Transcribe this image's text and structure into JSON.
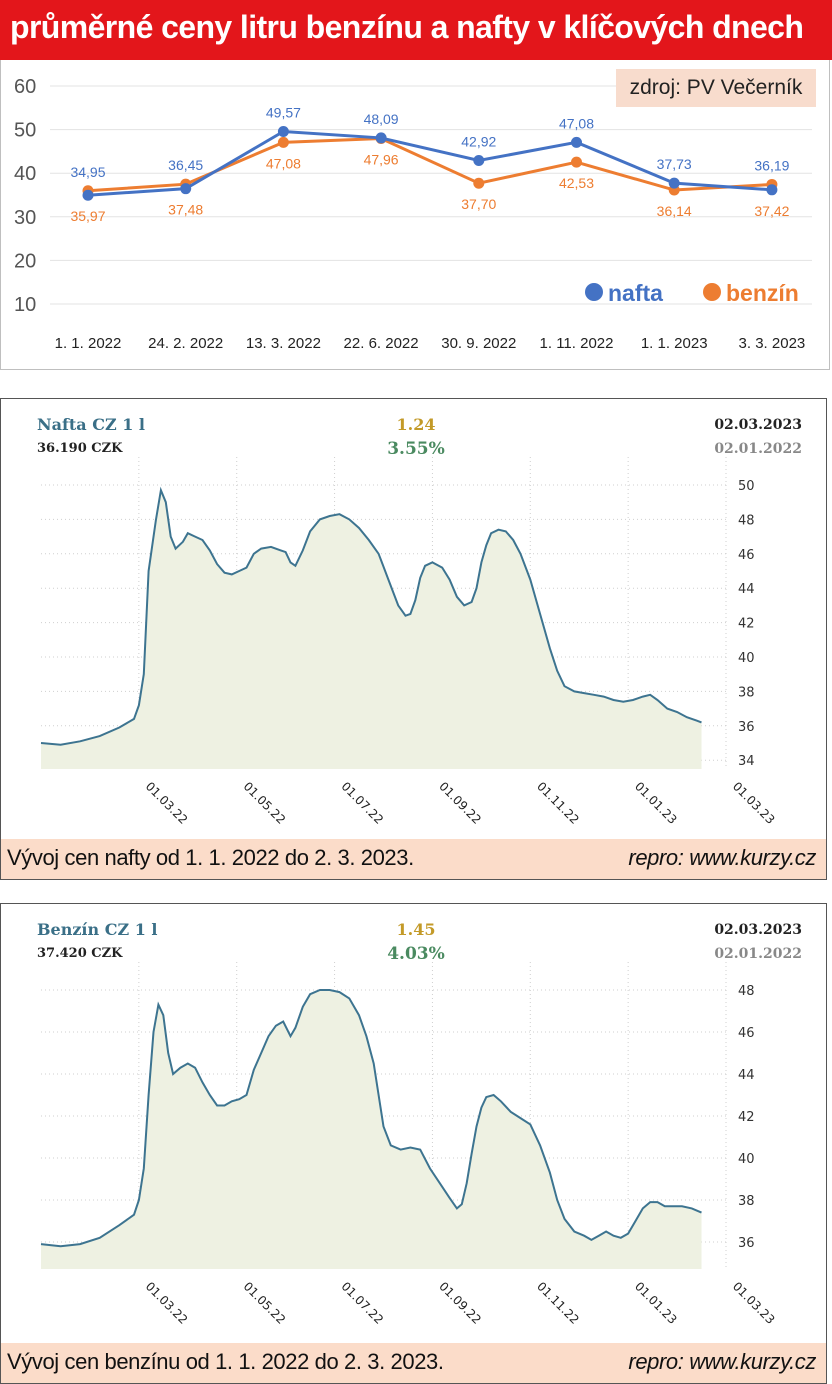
{
  "panel1": {
    "title": "průměrné ceny litru benzínu a nafty v klíčových dnech",
    "source": "zdroj: PV Večerník"
  },
  "panel2": {
    "name": "Nafta CZ 1 l",
    "price": "36.190 CZK",
    "change_abs": "1.24",
    "change_pct": "3.55%",
    "date_to": "02.03.2023",
    "date_from": "02.01.2022",
    "caption": "Vývoj cen nafty od 1. 1. 2022 do 2. 3. 2023.",
    "repro": "repro: www.kurzy.cz"
  },
  "panel3": {
    "name": "Benzín CZ 1 l",
    "price": "37.420 CZK",
    "change_abs": "1.45",
    "change_pct": "4.03%",
    "date_to": "02.03.2023",
    "date_from": "02.01.2022",
    "caption": "Vývoj cen benzínu od 1. 1. 2022 do 2. 3. 2023.",
    "repro": "repro: www.kurzy.cz"
  },
  "colors": {
    "title_red": "#e3161b",
    "nafta_blue": "#4472c4",
    "benzin_orange": "#ed7d31",
    "kurzy_line": "#3d7490",
    "kurzy_fill": "#eef1e2",
    "caption_bg": "#fbdcc9"
  },
  "chart_data": [
    {
      "type": "line",
      "categories": [
        "1. 1. 2022",
        "24. 2. 2022",
        "13. 3. 2022",
        "22. 6. 2022",
        "30. 9. 2022",
        "1. 11. 2022",
        "1. 1. 2023",
        "3. 3. 2023"
      ],
      "y_ticks": [
        60,
        50,
        40,
        30,
        20,
        10
      ],
      "ylim": [
        10,
        60
      ],
      "legend_position": "bottom-right",
      "series": [
        {
          "name": "nafta",
          "color": "#4472c4",
          "values": [
            34.95,
            36.45,
            49.57,
            48.09,
            42.92,
            47.08,
            37.73,
            36.19
          ],
          "labels": [
            "34,95",
            "36,45",
            "49,57",
            "48,09",
            "42,92",
            "47,08",
            "37,73",
            "36,19"
          ]
        },
        {
          "name": "benzín",
          "color": "#ed7d31",
          "values": [
            35.97,
            37.48,
            47.08,
            47.96,
            37.7,
            42.53,
            36.14,
            37.42
          ],
          "labels": [
            "35,97",
            "37,48",
            "47,08",
            "47,96",
            "37,70",
            "42,53",
            "36,14",
            "37,42"
          ]
        }
      ]
    },
    {
      "type": "area",
      "x_ticks": [
        "01.03.22",
        "01.05.22",
        "01.07.22",
        "01.09.22",
        "01.11.22",
        "01.01.23",
        "01.03.23"
      ],
      "y_ticks": [
        50,
        48,
        46,
        44,
        42,
        40,
        38,
        36,
        34
      ],
      "ylim": [
        33.5,
        50.5
      ],
      "x_month_range": [
        0,
        14
      ],
      "series": [
        {
          "points": [
            [
              0,
              35.0
            ],
            [
              0.4,
              34.9
            ],
            [
              0.8,
              35.1
            ],
            [
              1.2,
              35.4
            ],
            [
              1.6,
              35.9
            ],
            [
              1.9,
              36.4
            ],
            [
              2.0,
              37.2
            ],
            [
              2.1,
              39.0
            ],
            [
              2.2,
              45.0
            ],
            [
              2.35,
              48.0
            ],
            [
              2.45,
              49.7
            ],
            [
              2.55,
              49.0
            ],
            [
              2.65,
              47.0
            ],
            [
              2.75,
              46.3
            ],
            [
              2.9,
              46.7
            ],
            [
              3.0,
              47.2
            ],
            [
              3.15,
              47.0
            ],
            [
              3.3,
              46.8
            ],
            [
              3.45,
              46.2
            ],
            [
              3.6,
              45.4
            ],
            [
              3.75,
              44.9
            ],
            [
              3.9,
              44.8
            ],
            [
              4.05,
              45.0
            ],
            [
              4.2,
              45.2
            ],
            [
              4.35,
              46.0
            ],
            [
              4.5,
              46.3
            ],
            [
              4.7,
              46.4
            ],
            [
              4.9,
              46.2
            ],
            [
              5.0,
              46.1
            ],
            [
              5.1,
              45.5
            ],
            [
              5.2,
              45.3
            ],
            [
              5.35,
              46.2
            ],
            [
              5.5,
              47.3
            ],
            [
              5.7,
              48.0
            ],
            [
              5.9,
              48.2
            ],
            [
              6.1,
              48.3
            ],
            [
              6.3,
              48.0
            ],
            [
              6.5,
              47.5
            ],
            [
              6.7,
              46.8
            ],
            [
              6.9,
              46.0
            ],
            [
              7.1,
              44.5
            ],
            [
              7.3,
              43.0
            ],
            [
              7.45,
              42.4
            ],
            [
              7.55,
              42.5
            ],
            [
              7.65,
              43.3
            ],
            [
              7.75,
              44.6
            ],
            [
              7.85,
              45.3
            ],
            [
              8.0,
              45.5
            ],
            [
              8.2,
              45.2
            ],
            [
              8.35,
              44.5
            ],
            [
              8.5,
              43.5
            ],
            [
              8.65,
              43.0
            ],
            [
              8.8,
              43.2
            ],
            [
              8.9,
              44.0
            ],
            [
              9.0,
              45.5
            ],
            [
              9.1,
              46.5
            ],
            [
              9.2,
              47.2
            ],
            [
              9.35,
              47.4
            ],
            [
              9.5,
              47.3
            ],
            [
              9.65,
              46.8
            ],
            [
              9.8,
              46.0
            ],
            [
              10.0,
              44.5
            ],
            [
              10.2,
              42.5
            ],
            [
              10.4,
              40.5
            ],
            [
              10.55,
              39.2
            ],
            [
              10.7,
              38.3
            ],
            [
              10.9,
              38.0
            ],
            [
              11.1,
              37.9
            ],
            [
              11.3,
              37.8
            ],
            [
              11.5,
              37.7
            ],
            [
              11.7,
              37.5
            ],
            [
              11.9,
              37.4
            ],
            [
              12.1,
              37.5
            ],
            [
              12.3,
              37.7
            ],
            [
              12.45,
              37.8
            ],
            [
              12.6,
              37.5
            ],
            [
              12.8,
              37.0
            ],
            [
              13.0,
              36.8
            ],
            [
              13.2,
              36.5
            ],
            [
              13.4,
              36.3
            ],
            [
              13.5,
              36.2
            ]
          ]
        }
      ]
    },
    {
      "type": "area",
      "x_ticks": [
        "01.03.22",
        "01.05.22",
        "01.07.22",
        "01.09.22",
        "01.11.22",
        "01.01.23",
        "01.03.23"
      ],
      "y_ticks": [
        48,
        46,
        44,
        42,
        40,
        38,
        36
      ],
      "ylim": [
        34.7,
        48.9
      ],
      "x_month_range": [
        0,
        14
      ],
      "series": [
        {
          "points": [
            [
              0,
              35.9
            ],
            [
              0.4,
              35.8
            ],
            [
              0.8,
              35.9
            ],
            [
              1.2,
              36.2
            ],
            [
              1.6,
              36.8
            ],
            [
              1.9,
              37.3
            ],
            [
              2.0,
              38.0
            ],
            [
              2.1,
              39.5
            ],
            [
              2.2,
              43.0
            ],
            [
              2.3,
              46.0
            ],
            [
              2.4,
              47.3
            ],
            [
              2.5,
              46.8
            ],
            [
              2.6,
              45.0
            ],
            [
              2.7,
              44.0
            ],
            [
              2.85,
              44.3
            ],
            [
              3.0,
              44.5
            ],
            [
              3.15,
              44.3
            ],
            [
              3.3,
              43.6
            ],
            [
              3.45,
              43.0
            ],
            [
              3.6,
              42.5
            ],
            [
              3.75,
              42.5
            ],
            [
              3.9,
              42.7
            ],
            [
              4.05,
              42.8
            ],
            [
              4.2,
              43.0
            ],
            [
              4.35,
              44.2
            ],
            [
              4.5,
              45.0
            ],
            [
              4.65,
              45.8
            ],
            [
              4.8,
              46.3
            ],
            [
              4.95,
              46.5
            ],
            [
              5.1,
              45.8
            ],
            [
              5.2,
              46.2
            ],
            [
              5.35,
              47.2
            ],
            [
              5.5,
              47.8
            ],
            [
              5.7,
              48.0
            ],
            [
              5.9,
              48.0
            ],
            [
              6.1,
              47.9
            ],
            [
              6.3,
              47.6
            ],
            [
              6.5,
              46.8
            ],
            [
              6.65,
              45.8
            ],
            [
              6.8,
              44.5
            ],
            [
              6.9,
              43.0
            ],
            [
              7.0,
              41.5
            ],
            [
              7.15,
              40.6
            ],
            [
              7.35,
              40.4
            ],
            [
              7.55,
              40.5
            ],
            [
              7.75,
              40.4
            ],
            [
              7.95,
              39.5
            ],
            [
              8.15,
              38.8
            ],
            [
              8.35,
              38.1
            ],
            [
              8.5,
              37.6
            ],
            [
              8.6,
              37.8
            ],
            [
              8.7,
              38.8
            ],
            [
              8.8,
              40.2
            ],
            [
              8.9,
              41.5
            ],
            [
              9.0,
              42.4
            ],
            [
              9.1,
              42.9
            ],
            [
              9.25,
              43.0
            ],
            [
              9.4,
              42.7
            ],
            [
              9.6,
              42.2
            ],
            [
              9.8,
              41.9
            ],
            [
              10.0,
              41.6
            ],
            [
              10.2,
              40.6
            ],
            [
              10.4,
              39.3
            ],
            [
              10.55,
              38.0
            ],
            [
              10.7,
              37.1
            ],
            [
              10.9,
              36.5
            ],
            [
              11.1,
              36.3
            ],
            [
              11.25,
              36.1
            ],
            [
              11.4,
              36.3
            ],
            [
              11.55,
              36.5
            ],
            [
              11.7,
              36.3
            ],
            [
              11.85,
              36.2
            ],
            [
              12.0,
              36.4
            ],
            [
              12.15,
              37.0
            ],
            [
              12.3,
              37.6
            ],
            [
              12.45,
              37.9
            ],
            [
              12.6,
              37.9
            ],
            [
              12.75,
              37.7
            ],
            [
              12.9,
              37.7
            ],
            [
              13.1,
              37.7
            ],
            [
              13.3,
              37.6
            ],
            [
              13.5,
              37.4
            ]
          ]
        }
      ]
    }
  ]
}
